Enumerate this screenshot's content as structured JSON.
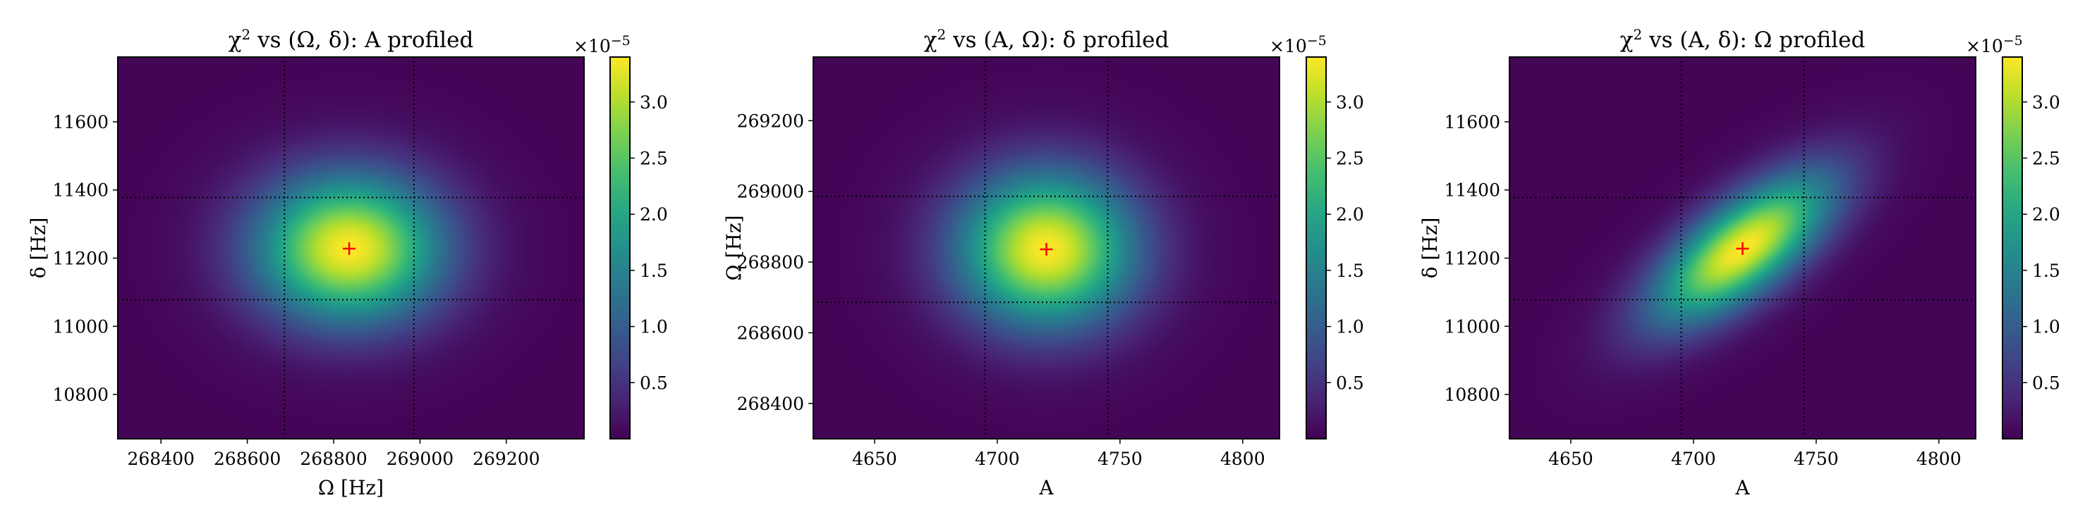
{
  "figure": {
    "colormap": "viridis",
    "marker_color": "#ff0000"
  },
  "chart_data": [
    {
      "type": "heatmap",
      "title_parts": [
        "χ",
        "2",
        " vs (Ω, ",
        "δ",
        "): A profiled"
      ],
      "xlabel": "Ω [Hz]",
      "ylabel": "δ [Hz]",
      "xlim": [
        268300,
        269380
      ],
      "ylim": [
        10670,
        11790
      ],
      "xticks": [
        268400,
        268600,
        268800,
        269000,
        269200
      ],
      "yticks": [
        10800,
        11000,
        11200,
        11400,
        11600
      ],
      "best_fit": {
        "x": 268836,
        "y": 11228
      },
      "sigma": {
        "x": 150,
        "y": 150
      },
      "correlation": 0.0,
      "vlines": [
        268686,
        268986
      ],
      "hlines": [
        11078,
        11378
      ],
      "colorbar": {
        "min": 0.0,
        "max": 3.4,
        "ticks": [
          0.5,
          1.0,
          1.5,
          2.0,
          2.5,
          3.0
        ],
        "tick_labels": [
          "0.5",
          "1.0",
          "1.5",
          "2.0",
          "2.5",
          "3.0"
        ],
        "multiplier_base": "×10",
        "multiplier_exp": "−5"
      }
    },
    {
      "type": "heatmap",
      "title_parts": [
        "χ",
        "2",
        " vs (A, Ω): ",
        "δ",
        " profiled"
      ],
      "xlabel": "A",
      "ylabel": "Ω [Hz]",
      "xlim": [
        4625,
        4815
      ],
      "ylim": [
        268300,
        269380
      ],
      "xticks": [
        4650,
        4700,
        4750,
        4800
      ],
      "yticks": [
        268400,
        268600,
        268800,
        269000,
        269200
      ],
      "best_fit": {
        "x": 4720,
        "y": 268836
      },
      "sigma": {
        "x": 25,
        "y": 150
      },
      "correlation": 0.0,
      "vlines": [
        4695,
        4745
      ],
      "hlines": [
        268686,
        268986
      ],
      "colorbar": {
        "min": 0.0,
        "max": 3.4,
        "ticks": [
          0.5,
          1.0,
          1.5,
          2.0,
          2.5,
          3.0
        ],
        "tick_labels": [
          "0.5",
          "1.0",
          "1.5",
          "2.0",
          "2.5",
          "3.0"
        ],
        "multiplier_base": "×10",
        "multiplier_exp": "−5"
      }
    },
    {
      "type": "heatmap",
      "title_parts": [
        "χ",
        "2",
        " vs (A, ",
        "δ",
        "): Ω profiled"
      ],
      "xlabel": "A",
      "ylabel": "δ [Hz]",
      "xlim": [
        4625,
        4815
      ],
      "ylim": [
        10670,
        11790
      ],
      "xticks": [
        4650,
        4700,
        4750,
        4800
      ],
      "yticks": [
        10800,
        11000,
        11200,
        11400,
        11600
      ],
      "best_fit": {
        "x": 4720,
        "y": 11228
      },
      "sigma": {
        "x": 25,
        "y": 150
      },
      "correlation": 0.7,
      "vlines": [
        4695,
        4745
      ],
      "hlines": [
        11078,
        11378
      ],
      "colorbar": {
        "min": 0.0,
        "max": 3.4,
        "ticks": [
          0.5,
          1.0,
          1.5,
          2.0,
          2.5,
          3.0
        ],
        "tick_labels": [
          "0.5",
          "1.0",
          "1.5",
          "2.0",
          "2.5",
          "3.0"
        ],
        "multiplier_base": "×10",
        "multiplier_exp": "−5"
      }
    }
  ]
}
